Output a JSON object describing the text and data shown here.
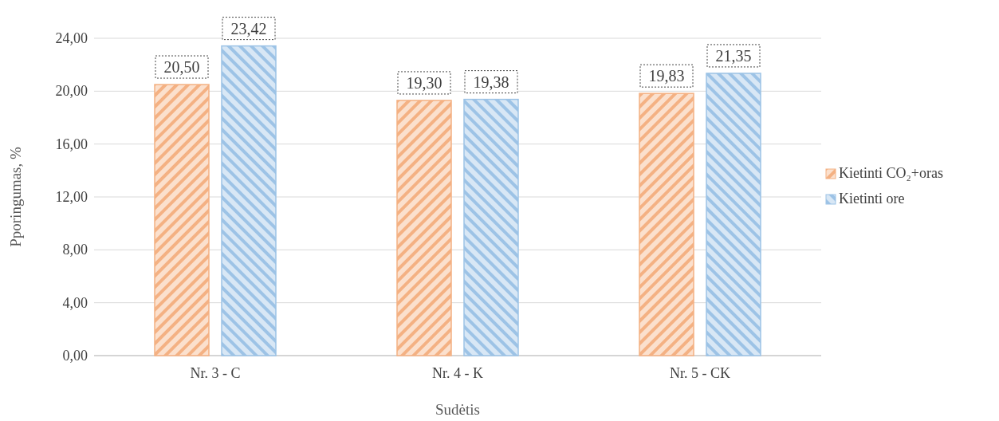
{
  "chart_data": {
    "type": "bar",
    "xlabel": "Sudėtis",
    "ylabel": "Pporingumas, %",
    "categories": [
      "Nr. 3 - C",
      "Nr. 4 - K",
      "Nr. 5 - CK"
    ],
    "series": [
      {
        "name": "Kietinti CO₂+oras",
        "color": "#f4b183",
        "values": [
          20.5,
          19.3,
          19.83
        ],
        "value_labels": [
          "20,50",
          "19,30",
          "19,83"
        ]
      },
      {
        "name": "Kietinti ore",
        "color": "#9dc3e6",
        "values": [
          23.42,
          19.38,
          21.35
        ],
        "value_labels": [
          "23,42",
          "19,38",
          "21,35"
        ]
      }
    ],
    "ylim": [
      0,
      24
    ],
    "yticks": [
      {
        "value": 0,
        "label": "0,00"
      },
      {
        "value": 4,
        "label": "4,00"
      },
      {
        "value": 8,
        "label": "8,00"
      },
      {
        "value": 12,
        "label": "12,00"
      },
      {
        "value": 16,
        "label": "16,00"
      },
      {
        "value": 20,
        "label": "20,00"
      },
      {
        "value": 24,
        "label": "24,00"
      }
    ],
    "grid": "y",
    "legend": "right"
  }
}
